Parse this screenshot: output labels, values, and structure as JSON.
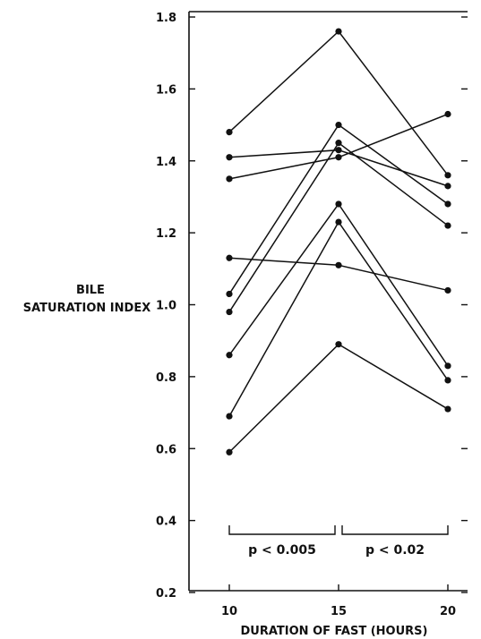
{
  "chart_data": {
    "type": "line",
    "ylabel_lines": [
      "BILE",
      "SATURATION INDEX"
    ],
    "xlabel": "DURATION OF FAST (HOURS)",
    "x": [
      10,
      15,
      20
    ],
    "x_ticks": [
      "10",
      "15",
      "20"
    ],
    "y_ticks": [
      "0.2",
      "0.4",
      "0.6",
      "0.8",
      "1.0",
      "1.2",
      "1.4",
      "1.6",
      "1.8"
    ],
    "ylim": [
      0.2,
      1.8
    ],
    "xlim": [
      10,
      20
    ],
    "grid": false,
    "series": [
      {
        "values": [
          1.48,
          1.76,
          1.36
        ]
      },
      {
        "values": [
          1.41,
          1.43,
          1.33
        ]
      },
      {
        "values": [
          1.35,
          1.41,
          1.53
        ]
      },
      {
        "values": [
          1.13,
          1.11,
          1.04
        ]
      },
      {
        "values": [
          1.03,
          1.5,
          1.28
        ]
      },
      {
        "values": [
          0.98,
          1.45,
          1.22
        ]
      },
      {
        "values": [
          0.86,
          1.28,
          0.83
        ]
      },
      {
        "values": [
          0.69,
          1.23,
          0.79
        ]
      },
      {
        "values": [
          0.59,
          0.89,
          0.71
        ]
      }
    ],
    "annotations": [
      {
        "text": "p < 0.005",
        "from_x": 10,
        "to_x": 15
      },
      {
        "text": "p < 0.02",
        "from_x": 15,
        "to_x": 20
      }
    ],
    "color": "#111111"
  }
}
